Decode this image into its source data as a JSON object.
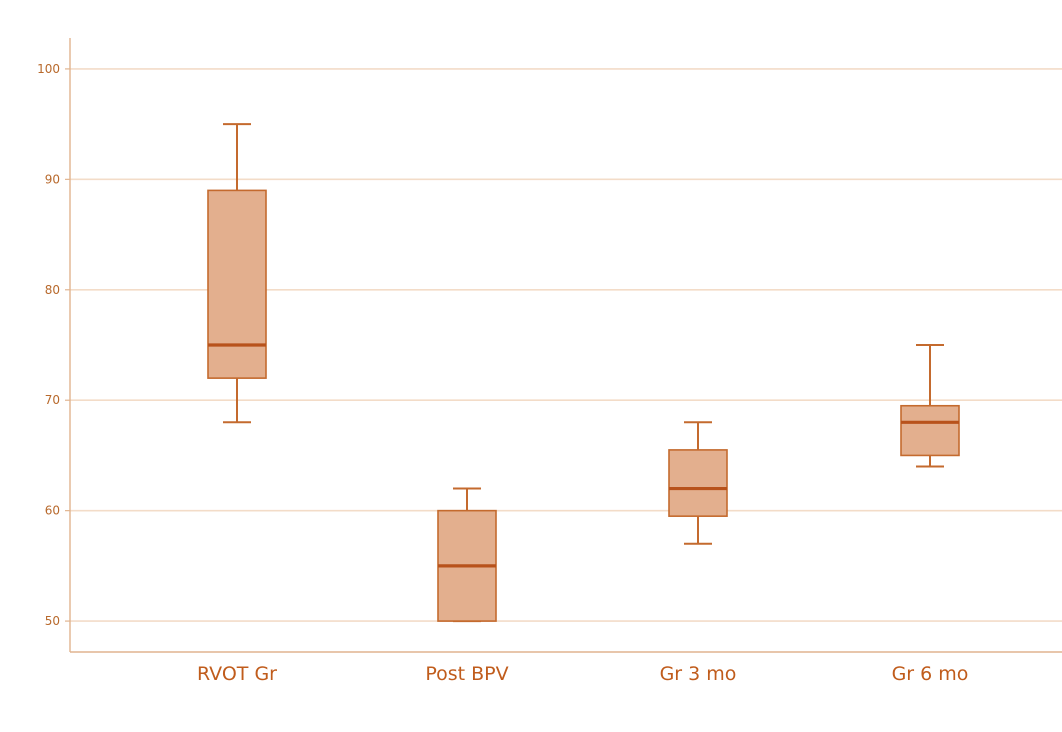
{
  "chart_data": {
    "type": "box",
    "title": "",
    "xlabel": "",
    "ylabel": "",
    "ylim": [
      47.2,
      102.8
    ],
    "yticks": [
      50,
      60,
      70,
      80,
      90,
      100
    ],
    "grid": true,
    "categories": [
      "RVOT Gr",
      "Post BPV",
      "Gr 3 mo",
      "Gr 6 mo"
    ],
    "boxes": [
      {
        "category": "RVOT Gr",
        "min": 68,
        "q1": 72,
        "median": 75,
        "q3": 89,
        "max": 95
      },
      {
        "category": "Post BPV",
        "min": 50,
        "q1": 50,
        "median": 55,
        "q3": 60,
        "max": 62
      },
      {
        "category": "Gr 3 mo",
        "min": 57,
        "q1": 59.5,
        "median": 62,
        "q3": 65.5,
        "max": 68
      },
      {
        "category": "Gr 6 mo",
        "min": 64,
        "q1": 65,
        "median": 68,
        "q3": 69.5,
        "max": 75
      }
    ],
    "colors": {
      "box_fill": "#e3af8e",
      "box_stroke": "#c46a2e",
      "median": "#b8521b",
      "whisker": "#c46a2e",
      "axis": "#e0b48f",
      "grid": "#f3dcc8",
      "tick_label": "#b8692c",
      "category_label": "#c05c1c"
    }
  }
}
